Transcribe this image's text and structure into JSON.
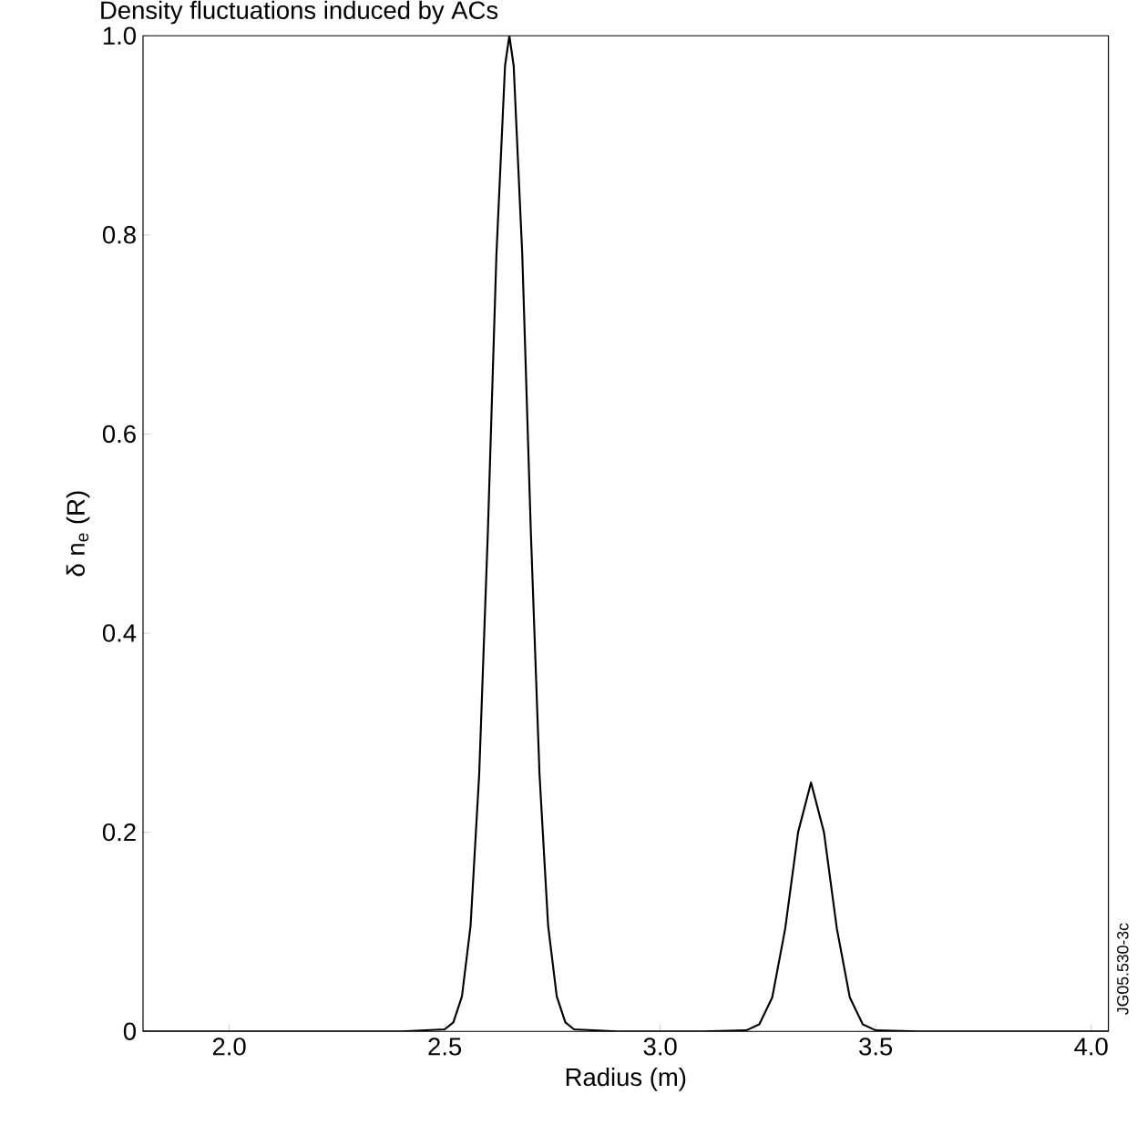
{
  "chart_data": {
    "type": "line",
    "title": "Density fluctuations induced by ACs",
    "xlabel": "Radius (m)",
    "ylabel": "δ n$_{e}$ (R)",
    "annotations": [
      "JG05.530-3c"
    ],
    "xlim": [
      1.8,
      4.04
    ],
    "ylim": [
      0,
      1
    ],
    "xticks": [
      {
        "value": 2,
        "label": "2.0"
      },
      2.5,
      {
        "value": 3,
        "label": "3.0"
      },
      3.5,
      {
        "value": 4,
        "label": "4.0"
      }
    ],
    "yticks": [
      0,
      0.2,
      0.4,
      0.6,
      0.8,
      {
        "value": 1,
        "label": "1.0"
      }
    ],
    "grid": false,
    "marker": "none",
    "line_style": "solid",
    "series": [
      {
        "color": "#000000",
        "x": [
          1.8,
          2.4,
          2.5,
          2.52,
          2.54,
          2.56,
          2.58,
          2.6,
          2.62,
          2.64,
          2.65,
          2.66,
          2.68,
          2.7,
          2.72,
          2.74,
          2.76,
          2.78,
          2.8,
          2.9,
          3.1,
          3.2,
          3.23,
          3.26,
          3.29,
          3.32,
          3.35,
          3.38,
          3.41,
          3.44,
          3.47,
          3.5,
          3.6,
          4.04
        ],
        "values": [
          0,
          0,
          0.002,
          0.009,
          0.035,
          0.106,
          0.258,
          0.5,
          0.78,
          0.97,
          1,
          0.97,
          0.78,
          0.5,
          0.258,
          0.106,
          0.035,
          0.009,
          0.002,
          0,
          0,
          0.001,
          0.007,
          0.034,
          0.103,
          0.2,
          0.25,
          0.2,
          0.103,
          0.034,
          0.007,
          0.001,
          0,
          0
        ]
      }
    ]
  }
}
